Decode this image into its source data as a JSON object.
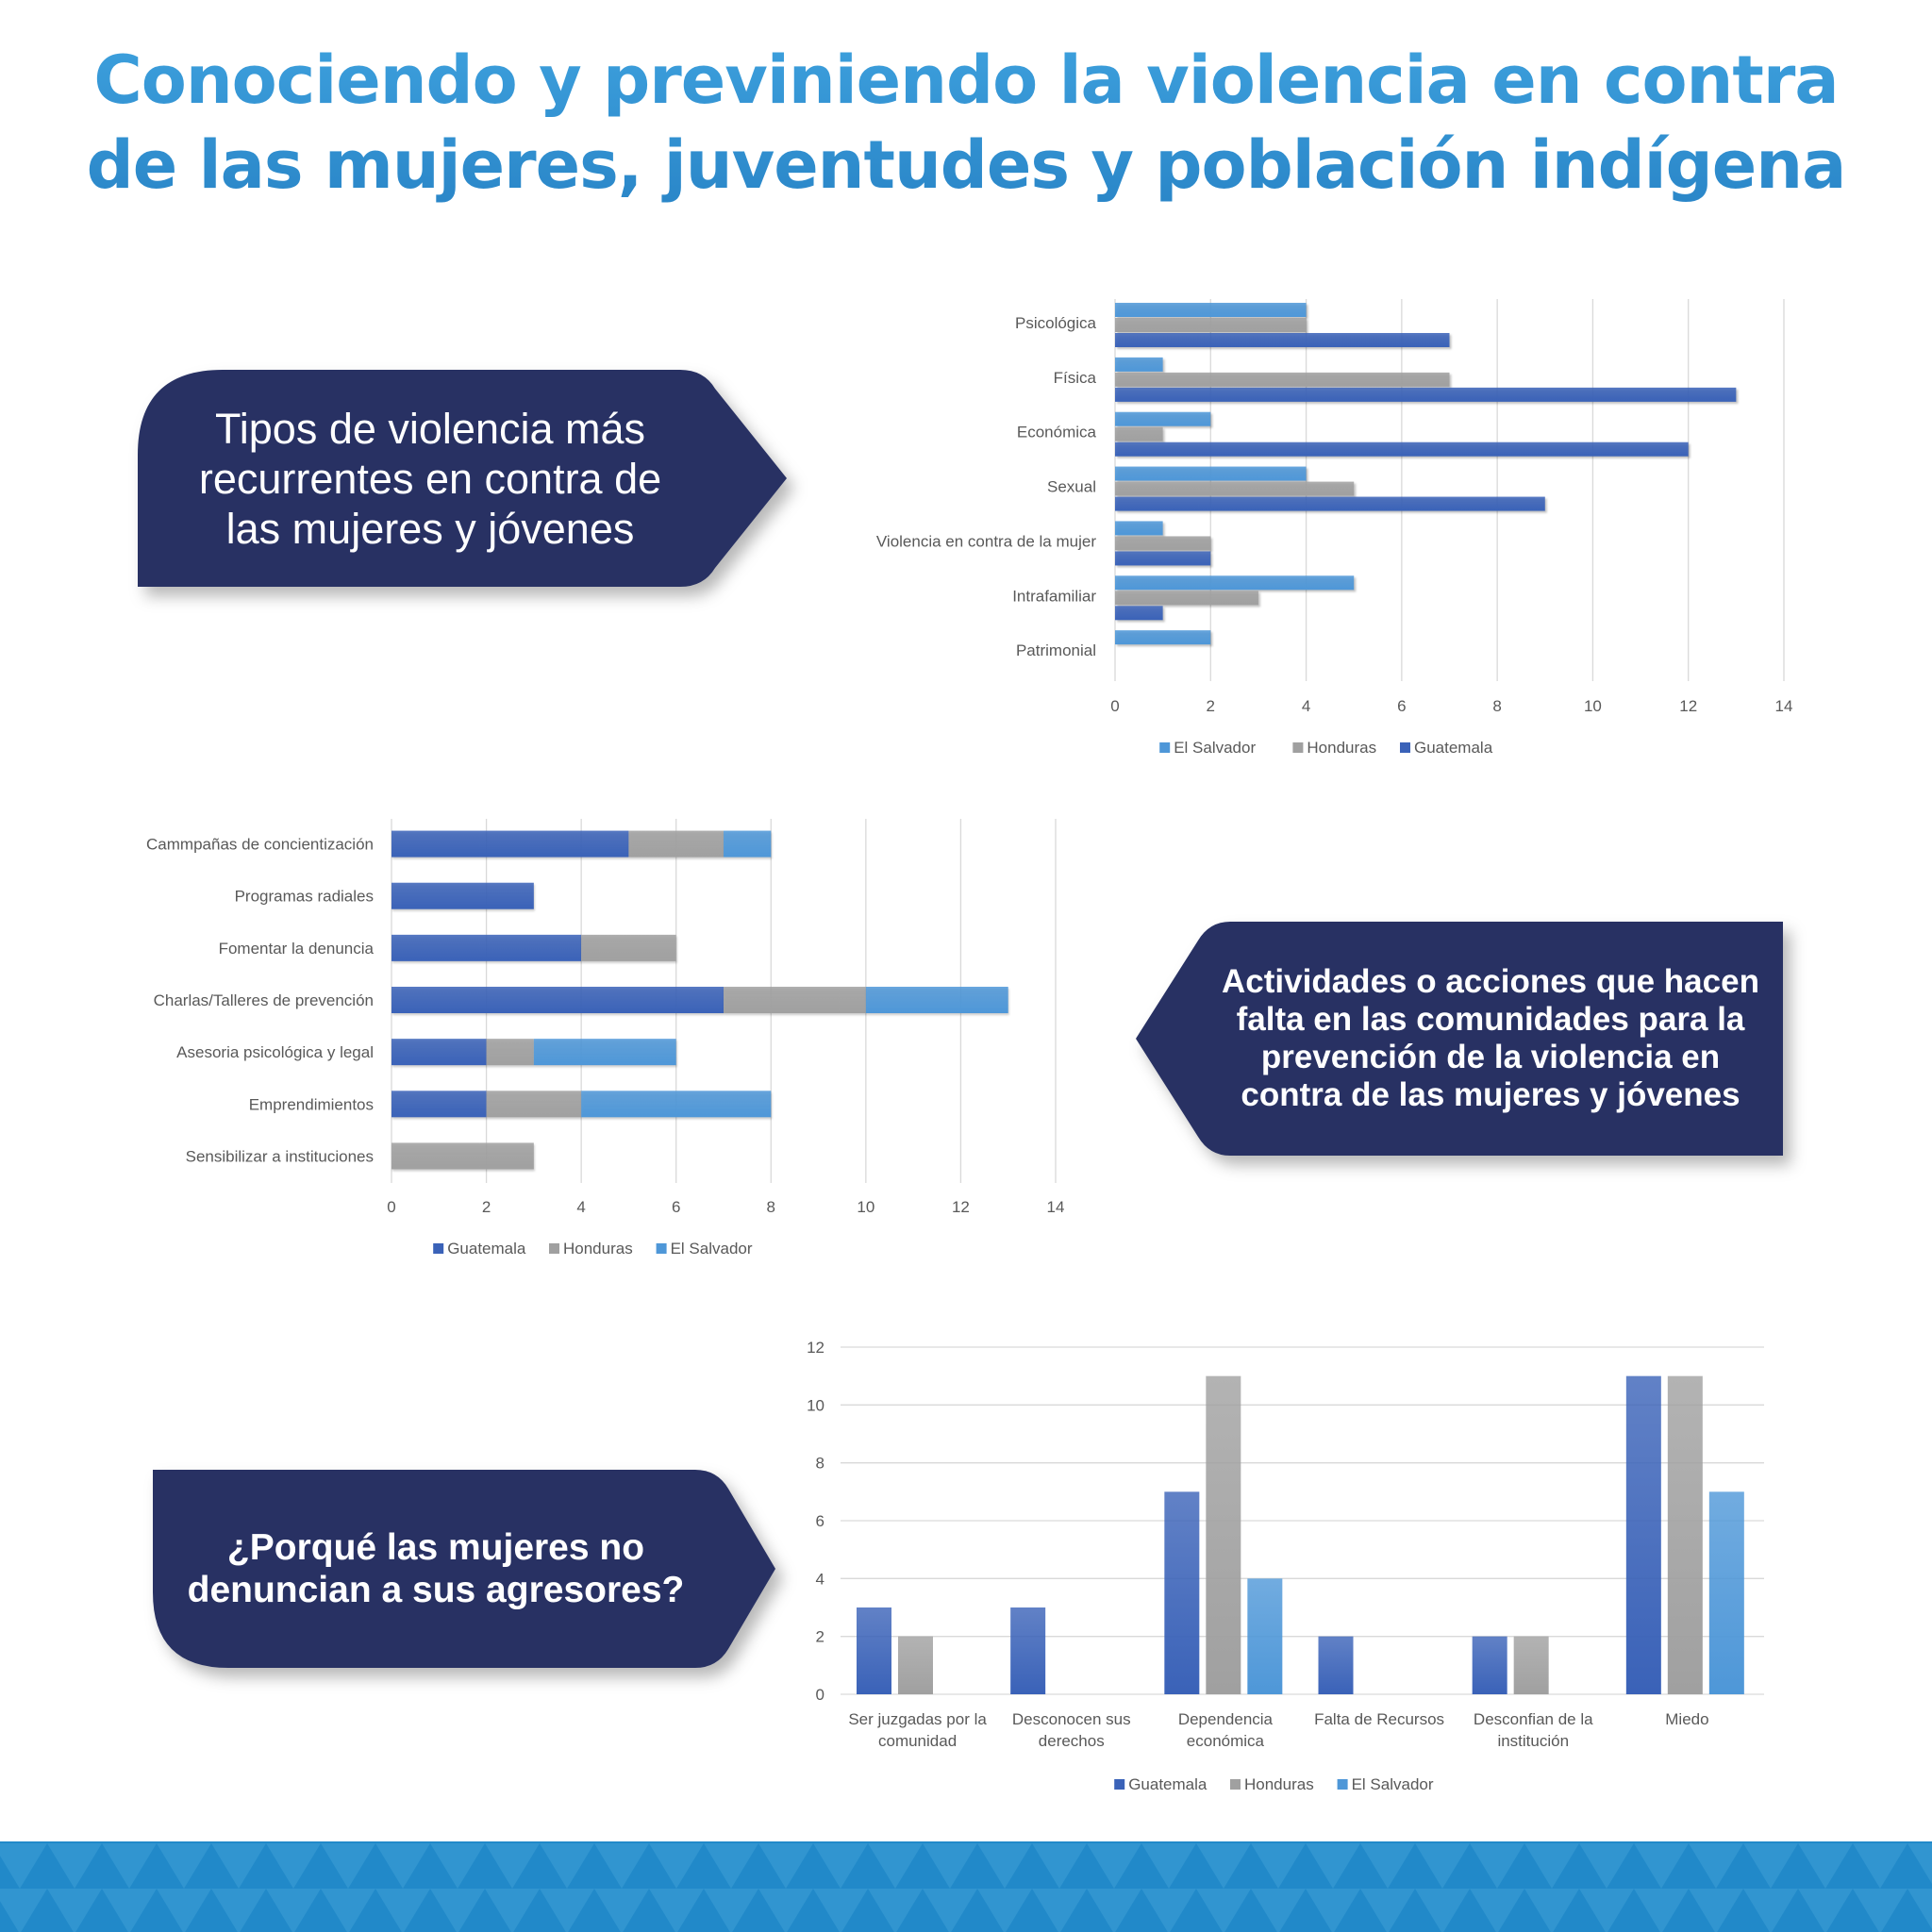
{
  "page": {
    "title_line1": "Conociendo y previniendo la violencia en contra",
    "title_line2": "de las mujeres, juventudes y población indígena"
  },
  "callouts": {
    "types": {
      "lines": [
        "Tipos de violencia más",
        "recurrentes en contra de",
        "las mujeres y jóvenes"
      ]
    },
    "activities": {
      "lines": [
        "Actividades o acciones que hacen",
        "falta en las comunidades para la",
        "prevención de la violencia en",
        "contra de las mujeres y jóvenes"
      ]
    },
    "reasons": {
      "lines": [
        "¿Porqué las mujeres no",
        "denuncian a sus agresores?"
      ]
    }
  },
  "colors": {
    "title": "#2d8fd0",
    "callout_bg": "#283163",
    "guatemala": "#3a62b8",
    "honduras": "#a0a0a0",
    "el_salvador": "#4e97d8",
    "band_dark": "#2189c9",
    "band_light": "#3195d0",
    "grid": "#d9d9d9",
    "axis_text": "#595959"
  },
  "chart_data": [
    {
      "id": "types",
      "type": "bar",
      "orientation": "horizontal",
      "stacked": false,
      "title": "",
      "categories": [
        "Psicológica",
        "Física",
        "Económica",
        "Sexual",
        "Violencia en contra de la  mujer",
        "Intrafamiliar",
        "Patrimonial"
      ],
      "series": [
        {
          "name": "El Salvador",
          "color_key": "el_salvador",
          "values": [
            4,
            1,
            2,
            4,
            1,
            5,
            2
          ]
        },
        {
          "name": "Honduras",
          "color_key": "honduras",
          "values": [
            4,
            7,
            1,
            5,
            2,
            3,
            0
          ]
        },
        {
          "name": "Guatemala",
          "color_key": "guatemala",
          "values": [
            7,
            13,
            12,
            9,
            2,
            1,
            0
          ]
        }
      ],
      "xlim": [
        0,
        14
      ],
      "ticks": [
        0,
        2,
        4,
        6,
        8,
        10,
        12,
        14
      ],
      "grid": true,
      "legend": [
        "El Salvador",
        "Honduras",
        "Guatemala"
      ],
      "legend_position": "bottom",
      "xlabel": "",
      "ylabel": ""
    },
    {
      "id": "activities",
      "type": "bar",
      "orientation": "horizontal",
      "stacked": true,
      "title": "",
      "categories": [
        "Cammpañas de concientización",
        "Programas radiales",
        "Fomentar la denuncia",
        "Charlas/Talleres de prevención",
        "Asesoria psicológica y legal",
        "Emprendimientos",
        "Sensibilizar a instituciones"
      ],
      "series": [
        {
          "name": "Guatemala",
          "color_key": "guatemala",
          "values": [
            5,
            3,
            4,
            7,
            2,
            2,
            0
          ]
        },
        {
          "name": "Honduras",
          "color_key": "honduras",
          "values": [
            2,
            0,
            2,
            3,
            1,
            2,
            3
          ]
        },
        {
          "name": "El Salvador",
          "color_key": "el_salvador",
          "values": [
            1,
            0,
            0,
            3,
            3,
            4,
            0
          ]
        }
      ],
      "xlim": [
        0,
        14
      ],
      "ticks": [
        0,
        2,
        4,
        6,
        8,
        10,
        12,
        14
      ],
      "grid": true,
      "legend": [
        "Guatemala",
        "Honduras",
        "El Salvador"
      ],
      "legend_position": "bottom",
      "xlabel": "",
      "ylabel": ""
    },
    {
      "id": "reasons",
      "type": "bar",
      "orientation": "vertical",
      "stacked": false,
      "title": "",
      "categories": [
        [
          "Ser juzgadas por la",
          "comunidad"
        ],
        [
          "Desconocen sus",
          "derechos"
        ],
        [
          "Dependencia",
          "económica"
        ],
        [
          "Falta de Recursos"
        ],
        [
          "Desconfian de la",
          "institución"
        ],
        [
          "Miedo"
        ]
      ],
      "series": [
        {
          "name": "Guatemala",
          "color_key": "guatemala",
          "values": [
            3,
            3,
            7,
            2,
            2,
            11
          ]
        },
        {
          "name": "Honduras",
          "color_key": "honduras",
          "values": [
            2,
            0,
            11,
            0,
            2,
            11
          ]
        },
        {
          "name": "El Salvador",
          "color_key": "el_salvador",
          "values": [
            0,
            0,
            4,
            0,
            0,
            7
          ]
        }
      ],
      "ylim": [
        0,
        12
      ],
      "ticks": [
        0,
        2,
        4,
        6,
        8,
        10,
        12
      ],
      "grid": true,
      "legend": [
        "Guatemala",
        "Honduras",
        "El Salvador"
      ],
      "legend_position": "bottom",
      "xlabel": "",
      "ylabel": ""
    }
  ]
}
